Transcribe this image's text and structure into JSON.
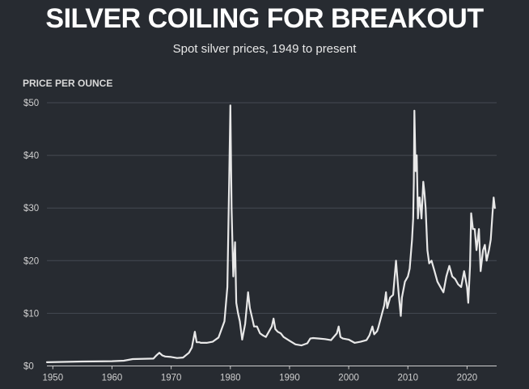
{
  "chart_data": {
    "type": "line",
    "title": "SILVER COILING FOR BREAKOUT",
    "subtitle": "Spot silver prices, 1949 to present",
    "ylabel": "PRICE PER OUNCE",
    "xlabel": "",
    "xlim": [
      1949,
      2025
    ],
    "ylim": [
      0,
      50
    ],
    "x_ticks": [
      1950,
      1960,
      1970,
      1980,
      1990,
      2000,
      2010,
      2020
    ],
    "y_ticks": [
      0,
      10,
      20,
      30,
      40,
      50
    ],
    "y_tick_labels": [
      "$0",
      "$10",
      "$20",
      "$30",
      "$40",
      "$50"
    ],
    "grid": "horizontal",
    "line_color": "#e8e8e8",
    "background_color": "#272b31",
    "series": [
      {
        "x": [
          1949,
          1955,
          1960,
          1962,
          1963.5,
          1967,
          1967.5,
          1968,
          1968.5,
          1969,
          1970,
          1971,
          1972,
          1973,
          1973.5,
          1974,
          1974.3,
          1974.8,
          1975,
          1976,
          1977,
          1978,
          1979,
          1979.5,
          1979.8,
          1980,
          1980.2,
          1980.5,
          1980.8,
          1981,
          1981.3,
          1981.6,
          1982,
          1982.5,
          1983,
          1983.3,
          1983.7,
          1984,
          1984.5,
          1985,
          1985.5,
          1986,
          1987,
          1987.3,
          1987.6,
          1988,
          1988.5,
          1989,
          1990,
          1991,
          1992,
          1993,
          1993.5,
          1994,
          1995,
          1996,
          1997,
          1998,
          1998.3,
          1998.6,
          1999,
          2000,
          2001,
          2002,
          2003,
          2003.5,
          2004,
          2004.3,
          2004.8,
          2005,
          2006,
          2006.3,
          2006.5,
          2007,
          2007.5,
          2008,
          2008.2,
          2008.5,
          2008.8,
          2009,
          2009.5,
          2010,
          2010.3,
          2010.7,
          2010.9,
          2011,
          2011.1,
          2011.3,
          2011.5,
          2011.7,
          2011.9,
          2012,
          2012.3,
          2012.6,
          2012.8,
          2013,
          2013.3,
          2013.6,
          2014,
          2014.5,
          2015,
          2015.5,
          2016,
          2016.5,
          2017,
          2017.5,
          2018,
          2018.5,
          2019,
          2019.5,
          2020,
          2020.2,
          2020.5,
          2020.7,
          2021,
          2021.3,
          2021.6,
          2022,
          2022.3,
          2022.7,
          2023,
          2023.3,
          2023.7,
          2024,
          2024.3,
          2024.5,
          2024.7
        ],
        "y": [
          0.7,
          0.85,
          0.9,
          1.0,
          1.3,
          1.4,
          2.0,
          2.5,
          2.0,
          1.8,
          1.7,
          1.5,
          1.6,
          2.5,
          3.5,
          6.5,
          4.5,
          4.5,
          4.4,
          4.4,
          4.6,
          5.4,
          8.5,
          15,
          35,
          49.5,
          30,
          17,
          23.5,
          12,
          10,
          8.5,
          5,
          8,
          14,
          11,
          9,
          7.5,
          7.5,
          6.2,
          5.8,
          5.5,
          7.5,
          9,
          7,
          6.5,
          6.2,
          5.5,
          4.8,
          4.1,
          3.9,
          4.3,
          5.2,
          5.3,
          5.2,
          5.1,
          4.9,
          6.2,
          7.5,
          5.5,
          5.2,
          5,
          4.4,
          4.6,
          4.9,
          5.8,
          7.5,
          6,
          6.6,
          7.3,
          11.5,
          14,
          11,
          13,
          13.5,
          20,
          17,
          13,
          9.5,
          13,
          16,
          17,
          18.5,
          24,
          28,
          35,
          48.5,
          37,
          40,
          28,
          32,
          32,
          28,
          35,
          33,
          30,
          22,
          19.5,
          20,
          18,
          16,
          15,
          14,
          17,
          19,
          17,
          16.5,
          15.5,
          15,
          18,
          15,
          12,
          19,
          29,
          26,
          26,
          22,
          26,
          18,
          22,
          23,
          20,
          22,
          24,
          29,
          32,
          30
        ]
      }
    ]
  }
}
